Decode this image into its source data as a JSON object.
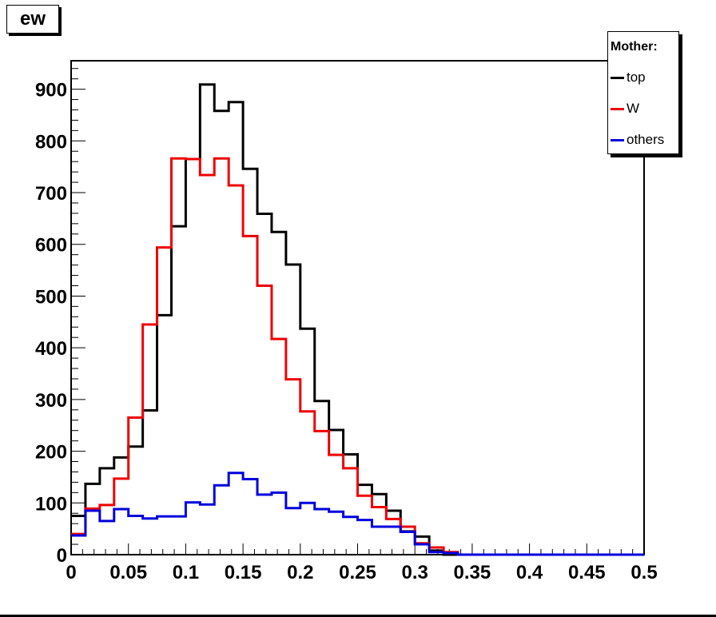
{
  "chart_data": {
    "type": "histogram",
    "title": "ew",
    "xlabel": "",
    "ylabel": "",
    "xlim": [
      0,
      0.5
    ],
    "ylim": [
      0,
      955
    ],
    "bin_width": 0.0125,
    "x_ticks": [
      "0",
      "0.05",
      "0.1",
      "0.15",
      "0.2",
      "0.25",
      "0.3",
      "0.35",
      "0.4",
      "0.45",
      "0.5"
    ],
    "y_ticks": [
      "0",
      "100",
      "200",
      "300",
      "400",
      "500",
      "600",
      "700",
      "800",
      "900"
    ],
    "legend": {
      "header": "Mother:",
      "position": "top-right"
    },
    "series": [
      {
        "name": "top",
        "color": "#000000",
        "values": [
          75,
          137,
          167,
          188,
          209,
          279,
          463,
          635,
          765,
          909,
          858,
          875,
          746,
          659,
          624,
          561,
          437,
          297,
          241,
          194,
          135,
          117,
          85,
          45,
          35,
          8,
          0,
          0,
          0,
          0,
          0,
          0,
          0,
          0,
          0,
          0,
          0,
          0,
          0,
          0
        ]
      },
      {
        "name": "W",
        "color": "#ee0000",
        "values": [
          40,
          89,
          96,
          147,
          265,
          445,
          594,
          766,
          765,
          734,
          766,
          714,
          616,
          520,
          417,
          339,
          277,
          239,
          193,
          167,
          114,
          92,
          69,
          54,
          22,
          14,
          5,
          0,
          0,
          0,
          0,
          0,
          0,
          0,
          0,
          0,
          0,
          0,
          0,
          0
        ]
      },
      {
        "name": "others",
        "color": "#0000dd",
        "values": [
          37,
          85,
          65,
          88,
          75,
          70,
          74,
          74,
          101,
          97,
          134,
          158,
          146,
          116,
          120,
          90,
          100,
          88,
          83,
          73,
          67,
          54,
          54,
          44,
          20,
          5,
          3,
          0,
          0,
          0,
          0,
          0,
          0,
          0,
          0,
          0,
          0,
          0,
          0,
          0
        ]
      }
    ]
  }
}
